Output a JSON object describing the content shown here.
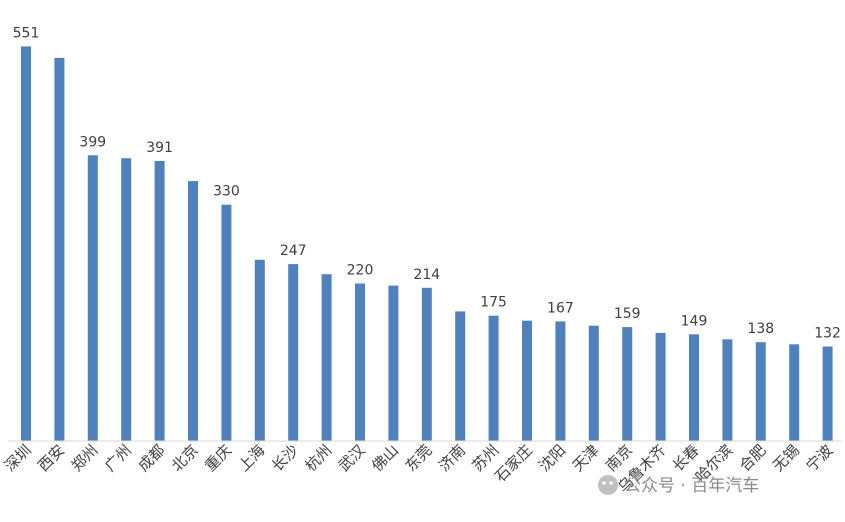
{
  "chart_data": {
    "type": "bar",
    "title": "",
    "xlabel": "",
    "ylabel": "",
    "ylim": [
      0,
      560
    ],
    "grid": false,
    "legend": "none",
    "bar_color": "#4f81bd",
    "categories": [
      "深圳",
      "西安",
      "郑州",
      "广州",
      "成都",
      "北京",
      "重庆",
      "上海",
      "长沙",
      "杭州",
      "武汉",
      "佛山",
      "东莞",
      "济南",
      "苏州",
      "石家庄",
      "沈阳",
      "天津",
      "南京",
      "乌鲁木齐",
      "长春",
      "哈尔滨",
      "合肥",
      "无锡",
      "宁波"
    ],
    "values": [
      551,
      535,
      399,
      395,
      391,
      363,
      330,
      253,
      247,
      233,
      220,
      217,
      214,
      181,
      175,
      168,
      167,
      161,
      159,
      151,
      149,
      142,
      138,
      135,
      132
    ],
    "labeled_values": [
      "551",
      "",
      "399",
      "",
      "391",
      "",
      "330",
      "",
      "247",
      "",
      "220",
      "",
      "214",
      "",
      "175",
      "",
      "167",
      "",
      "159",
      "",
      "149",
      "",
      "138",
      "",
      "132"
    ]
  },
  "watermark": {
    "icon": "wechat-icon",
    "text": "公众号 · 百年汽车"
  }
}
